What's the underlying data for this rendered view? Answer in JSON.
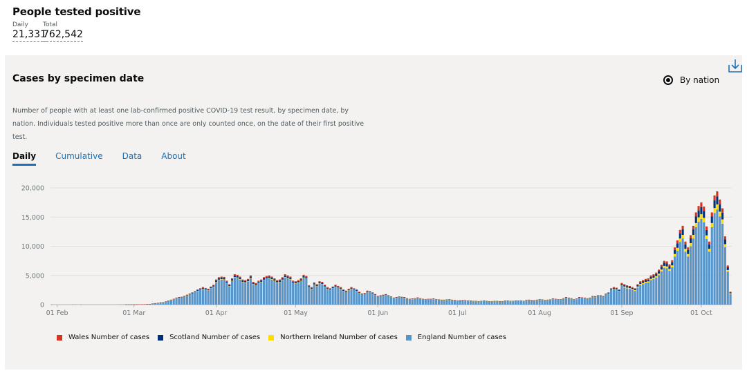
{
  "header": {
    "title": "People tested positive",
    "daily_label": "Daily",
    "daily_value": "21,331",
    "total_label": "Total",
    "total_value": "762,542"
  },
  "card": {
    "title": "Cases by specimen date",
    "radio_label": "By nation",
    "description": "Number of people with at least one lab-confirmed positive COVID-19 test result, by specimen date, by nation. Individuals tested positive more than once are only counted once, on the date of their first positive test.",
    "download_icon": "download-icon",
    "tabs": [
      {
        "label": "Daily",
        "active": true
      },
      {
        "label": "Cumulative",
        "active": false
      },
      {
        "label": "Data",
        "active": false
      },
      {
        "label": "About",
        "active": false
      }
    ]
  },
  "chart_data": {
    "type": "bar",
    "stacked": true,
    "ylim": [
      0,
      20000
    ],
    "yticks": [
      0,
      5000,
      10000,
      15000,
      20000
    ],
    "ytick_labels": [
      "0",
      "5,000",
      "10,000",
      "15,000",
      "20,000"
    ],
    "xtick_labels": [
      "01 Feb",
      "01 Mar",
      "01 Apr",
      "01 May",
      "01 Jun",
      "01 Jul",
      "01 Aug",
      "01 Sep",
      "01 Oct"
    ],
    "grid": true,
    "legend_position": "bottom-left",
    "series": [
      {
        "name": "Wales Number of cases",
        "color": "#d4351c",
        "values": [
          0,
          0,
          0,
          0,
          0,
          0,
          0,
          0,
          0,
          0,
          0,
          0,
          0,
          0,
          0,
          0,
          0,
          0,
          0,
          0,
          0,
          0,
          0,
          0,
          0,
          0,
          0,
          0,
          0,
          0,
          0,
          0,
          0,
          0,
          0,
          0,
          0,
          0,
          0,
          0,
          0,
          0,
          0,
          0,
          0,
          0,
          0,
          0,
          0,
          0,
          0,
          0,
          0,
          0,
          0,
          0,
          0,
          0,
          0,
          0,
          0,
          0,
          0,
          0,
          0,
          0,
          0,
          0,
          0,
          0,
          0,
          0,
          0,
          0,
          0,
          0,
          0,
          0,
          0,
          0,
          0,
          0,
          0,
          0,
          0,
          0,
          0,
          0,
          0,
          0,
          0,
          0,
          0,
          0,
          0,
          0,
          0,
          0,
          0,
          0,
          0,
          0,
          0,
          0,
          0,
          0,
          0,
          0,
          0,
          0,
          0,
          0,
          0,
          0,
          0,
          0,
          0,
          0,
          0,
          0,
          0,
          0,
          0,
          0,
          0,
          0,
          0,
          0,
          0,
          0,
          0,
          0,
          0,
          0,
          0,
          0,
          0,
          0,
          0,
          0,
          0,
          0,
          0,
          0,
          0,
          0,
          0,
          0,
          0,
          0,
          0,
          0,
          0,
          0,
          0,
          0,
          0,
          0,
          0,
          0,
          0,
          0,
          0,
          0,
          0,
          0,
          0,
          0,
          0,
          0,
          0,
          0,
          0,
          0,
          0,
          0,
          0,
          0,
          0,
          0,
          0,
          0,
          0,
          0,
          0,
          0,
          0,
          0,
          0,
          0,
          0,
          0,
          0,
          0,
          0,
          0,
          0,
          0,
          0,
          0,
          0,
          0,
          0,
          0,
          0,
          0,
          0,
          0,
          0,
          0,
          0,
          0,
          0,
          0,
          0,
          0,
          0,
          0,
          0,
          0,
          0,
          0,
          0,
          0,
          0,
          0,
          0,
          0,
          0,
          0,
          0,
          0,
          0,
          0,
          0,
          0,
          0,
          0,
          0,
          0,
          0,
          0,
          0,
          0,
          0,
          0,
          0,
          0,
          0,
          0,
          0,
          0,
          0,
          0,
          0,
          0,
          0,
          0,
          0,
          0,
          0,
          0,
          0,
          0,
          0,
          0,
          0,
          0,
          0,
          0,
          0,
          0,
          0,
          0,
          0,
          0,
          0,
          0,
          0,
          0,
          0,
          0,
          0,
          0
        ]
      },
      {
        "name": "Scotland Number of cases",
        "color": "#003078",
        "values": []
      },
      {
        "name": "Northern Ireland Number of cases",
        "color": "#ffdd00",
        "values": []
      },
      {
        "name": "England Number of cases",
        "color": "#5694ca",
        "values": []
      }
    ],
    "date_start": "2020-01-30",
    "daily_totals": [
      2,
      0,
      0,
      0,
      0,
      0,
      0,
      0,
      1,
      1,
      0,
      1,
      0,
      0,
      0,
      0,
      0,
      0,
      0,
      0,
      0,
      0,
      0,
      0,
      0,
      3,
      4,
      9,
      14,
      13,
      20,
      27,
      39,
      55,
      60,
      65,
      87,
      115,
      190,
      250,
      300,
      380,
      420,
      550,
      700,
      850,
      1000,
      1200,
      1300,
      1350,
      1500,
      1700,
      1900,
      2100,
      2300,
      2600,
      2800,
      3000,
      2850,
      2700,
      3100,
      3400,
      4300,
      4700,
      4800,
      4750,
      4100,
      3500,
      4500,
      5200,
      5100,
      4800,
      4300,
      4200,
      4400,
      5000,
      3900,
      3700,
      4100,
      4300,
      4700,
      4900,
      5000,
      4800,
      4500,
      4200,
      4300,
      4700,
      5200,
      5000,
      4800,
      4100,
      4000,
      4200,
      4500,
      5100,
      4900,
      3300,
      3000,
      3800,
      3500,
      4000,
      3900,
      3400,
      3000,
      2800,
      3100,
      3400,
      3200,
      3000,
      2600,
      2400,
      2700,
      3000,
      2800,
      2600,
      2200,
      1900,
      2000,
      2400,
      2300,
      2100,
      1800,
      1500,
      1600,
      1700,
      1800,
      1600,
      1400,
      1200,
      1300,
      1400,
      1350,
      1300,
      1100,
      1000,
      1050,
      1100,
      1250,
      1100,
      1000,
      950,
      1000,
      1000,
      1050,
      950,
      900,
      850,
      850,
      900,
      950,
      850,
      800,
      700,
      750,
      800,
      750,
      700,
      700,
      650,
      650,
      600,
      650,
      700,
      650,
      600,
      600,
      650,
      650,
      600,
      600,
      700,
      700,
      650,
      650,
      700,
      700,
      700,
      650,
      800,
      850,
      800,
      750,
      850,
      950,
      900,
      800,
      850,
      900,
      1050,
      1000,
      950,
      950,
      1100,
      1300,
      1200,
      1100,
      950,
      1050,
      1300,
      1250,
      1200,
      1100,
      1200,
      1500,
      1450,
      1600,
      1600,
      1500,
      1900,
      2100,
      2800,
      3000,
      2900,
      2600,
      3700,
      3500,
      3300,
      3200,
      3000,
      2800,
      3500,
      4000,
      4200,
      4400,
      4500,
      5000,
      5200,
      5500,
      6000,
      6800,
      7500,
      7400,
      6900,
      7600,
      9800,
      11000,
      12800,
      13500,
      10800,
      9800,
      11900,
      13500,
      15800,
      16900,
      17500,
      16800,
      13400,
      10800,
      15800,
      18700,
      19400,
      18000,
      16500,
      11700,
      6700,
      2200
    ],
    "legend_note": ""
  }
}
